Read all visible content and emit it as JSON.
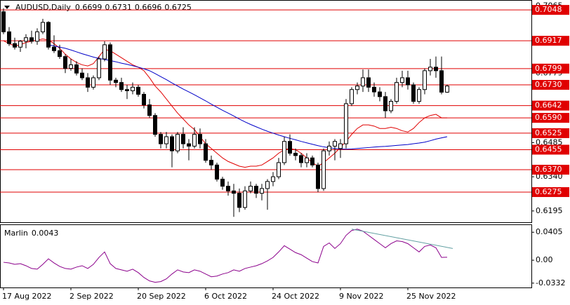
{
  "chart_data": [
    {
      "type": "candlestick",
      "title": "AUDUSD,Daily",
      "categories": [
        "17 Aug 2022",
        null,
        null,
        null,
        null,
        null,
        null,
        null,
        null,
        null,
        null,
        null,
        "2 Sep 2022",
        null,
        null,
        null,
        null,
        null,
        null,
        null,
        null,
        null,
        null,
        null,
        "20 Sep 2022",
        null,
        null,
        null,
        null,
        null,
        null,
        null,
        null,
        null,
        null,
        null,
        "6 Oct 2022",
        null,
        null,
        null,
        null,
        null,
        null,
        null,
        null,
        null,
        null,
        null,
        "24 Oct 2022",
        null,
        null,
        null,
        null,
        null,
        null,
        null,
        null,
        null,
        null,
        null,
        "9 Nov 2022",
        null,
        null,
        null,
        null,
        null,
        null,
        null,
        null,
        null,
        null,
        null,
        "25 Nov 2022",
        null,
        null,
        null,
        null,
        null,
        null,
        null
      ],
      "open": [
        0.704,
        0.6955,
        0.6905,
        0.689,
        0.6915,
        0.693,
        0.6915,
        0.6955,
        0.6995,
        0.689,
        0.6875,
        0.685,
        0.68,
        0.6815,
        0.678,
        0.676,
        0.672,
        0.676,
        0.684,
        0.69,
        0.675,
        0.674,
        0.671,
        0.6705,
        0.672,
        0.669,
        0.6645,
        0.66,
        0.652,
        0.648,
        0.651,
        0.645,
        0.652,
        0.648,
        0.647,
        0.652,
        0.648,
        0.641,
        0.639,
        0.633,
        0.63,
        0.628,
        0.627,
        0.621,
        0.628,
        0.63,
        0.627,
        0.629,
        0.632,
        0.634,
        0.64,
        0.649,
        0.644,
        0.643,
        0.64,
        0.642,
        0.639,
        0.629,
        0.645,
        0.647,
        0.646,
        0.648,
        0.665,
        0.671,
        0.6725,
        0.676,
        0.672,
        0.67,
        0.668,
        0.662,
        0.666,
        0.674,
        0.676,
        0.673,
        0.666,
        0.671,
        0.679,
        0.6805,
        0.679,
        0.6699
      ],
      "high": [
        0.7055,
        0.6975,
        0.693,
        0.692,
        0.6945,
        0.696,
        0.697,
        0.701,
        0.7,
        0.694,
        0.69,
        0.686,
        0.684,
        0.683,
        0.68,
        0.678,
        0.677,
        0.685,
        0.6915,
        0.691,
        0.676,
        0.676,
        0.673,
        0.674,
        0.673,
        0.67,
        0.667,
        0.661,
        0.653,
        0.653,
        0.652,
        0.653,
        0.655,
        0.65,
        0.655,
        0.6545,
        0.65,
        0.643,
        0.64,
        0.634,
        0.632,
        0.631,
        0.629,
        0.63,
        0.632,
        0.631,
        0.631,
        0.633,
        0.636,
        0.642,
        0.651,
        0.652,
        0.646,
        0.644,
        0.644,
        0.643,
        0.64,
        0.646,
        0.649,
        0.65,
        0.65,
        0.667,
        0.672,
        0.674,
        0.6795,
        0.6795,
        0.674,
        0.672,
        0.67,
        0.667,
        0.676,
        0.679,
        0.679,
        0.674,
        0.672,
        0.68,
        0.684,
        0.685,
        0.685,
        0.6731
      ],
      "low": [
        0.6945,
        0.6895,
        0.688,
        0.687,
        0.6885,
        0.6905,
        0.69,
        0.6945,
        0.688,
        0.6865,
        0.684,
        0.678,
        0.679,
        0.677,
        0.675,
        0.67,
        0.671,
        0.675,
        0.683,
        0.673,
        0.672,
        0.67,
        0.667,
        0.669,
        0.668,
        0.663,
        0.659,
        0.651,
        0.646,
        0.646,
        0.638,
        0.644,
        0.646,
        0.641,
        0.646,
        0.646,
        0.64,
        0.637,
        0.632,
        0.6285,
        0.626,
        0.617,
        0.619,
        0.62,
        0.627,
        0.625,
        0.624,
        0.62,
        0.63,
        0.633,
        0.639,
        0.643,
        0.641,
        0.638,
        0.638,
        0.638,
        0.6275,
        0.628,
        0.643,
        0.641,
        0.642,
        0.646,
        0.664,
        0.669,
        0.67,
        0.67,
        0.668,
        0.666,
        0.659,
        0.661,
        0.665,
        0.672,
        0.671,
        0.665,
        0.665,
        0.669,
        0.677,
        0.676,
        0.669,
        0.6696
      ],
      "close": [
        0.6955,
        0.6905,
        0.689,
        0.6915,
        0.693,
        0.6915,
        0.6955,
        0.6995,
        0.689,
        0.6875,
        0.685,
        0.68,
        0.6815,
        0.678,
        0.676,
        0.672,
        0.676,
        0.684,
        0.69,
        0.675,
        0.674,
        0.671,
        0.6705,
        0.672,
        0.669,
        0.6645,
        0.66,
        0.652,
        0.648,
        0.651,
        0.645,
        0.652,
        0.648,
        0.647,
        0.652,
        0.648,
        0.641,
        0.639,
        0.633,
        0.63,
        0.628,
        0.627,
        0.621,
        0.628,
        0.63,
        0.627,
        0.629,
        0.632,
        0.634,
        0.64,
        0.649,
        0.644,
        0.643,
        0.64,
        0.642,
        0.639,
        0.629,
        0.645,
        0.647,
        0.649,
        0.648,
        0.665,
        0.671,
        0.6725,
        0.676,
        0.672,
        0.67,
        0.668,
        0.662,
        0.666,
        0.674,
        0.676,
        0.673,
        0.666,
        0.671,
        0.679,
        0.6805,
        0.679,
        0.6699,
        0.6725
      ],
      "lines": [
        {
          "color": "#e00000",
          "values": [
            0.6917,
            0.6905,
            0.6895,
            0.69,
            0.691,
            0.6915,
            0.692,
            0.6925,
            0.692,
            0.6905,
            0.6885,
            0.686,
            0.684,
            0.6825,
            0.6815,
            0.681,
            0.682,
            0.685,
            0.688,
            0.6875,
            0.686,
            0.6845,
            0.683,
            0.6815,
            0.6805,
            0.679,
            0.676,
            0.6725,
            0.67,
            0.667,
            0.664,
            0.661,
            0.6585,
            0.656,
            0.654,
            0.651,
            0.648,
            0.646,
            0.644,
            0.642,
            0.6405,
            0.6395,
            0.6385,
            0.638,
            0.6385,
            0.6385,
            0.639,
            0.6405,
            0.642,
            0.644,
            0.6455,
            0.646,
            0.6455,
            0.644,
            0.642,
            0.64,
            0.6385,
            0.64,
            0.642,
            0.644,
            0.6465,
            0.649,
            0.652,
            0.6545,
            0.656,
            0.656,
            0.6555,
            0.6545,
            0.6545,
            0.655,
            0.6545,
            0.6535,
            0.653,
            0.6545,
            0.657,
            0.659,
            0.66,
            0.6605,
            0.659,
            0.659
          ]
        },
        {
          "color": "#0000c8",
          "values": [
            null,
            null,
            null,
            null,
            null,
            null,
            null,
            null,
            0.69,
            0.6895,
            0.689,
            0.6885,
            0.6878,
            0.687,
            0.6862,
            0.6855,
            0.6848,
            0.6842,
            0.6838,
            0.6833,
            0.6828,
            0.6822,
            0.6817,
            0.6811,
            0.6805,
            0.6798,
            0.679,
            0.6778,
            0.6765,
            0.6752,
            0.6738,
            0.6725,
            0.6712,
            0.67,
            0.6688,
            0.6675,
            0.6662,
            0.6648,
            0.6635,
            0.6622,
            0.661,
            0.6598,
            0.6585,
            0.6573,
            0.6562,
            0.6552,
            0.6542,
            0.6533,
            0.6525,
            0.6517,
            0.651,
            0.6503,
            0.6497,
            0.649,
            0.6484,
            0.6478,
            0.6472,
            0.6467,
            0.6463,
            0.646,
            0.6458,
            0.6457,
            0.6458,
            0.646,
            0.6462,
            0.6464,
            0.6466,
            0.6468,
            0.6469,
            0.6471,
            0.6473,
            0.6475,
            0.6477,
            0.648,
            0.6483,
            0.6487,
            0.6493,
            0.65,
            0.6505,
            0.651
          ]
        }
      ],
      "levels": [
        {
          "value": 0.7048,
          "label": "0.7048"
        },
        {
          "value": 0.6917,
          "label": "0.6917"
        },
        {
          "value": 0.6799,
          "label": "0.6799"
        },
        {
          "value": 0.673,
          "label": "0.6730"
        },
        {
          "value": 0.6642,
          "label": "0.6642"
        },
        {
          "value": 0.659,
          "label": "0.6590"
        },
        {
          "value": 0.6525,
          "label": "0.6525"
        },
        {
          "value": 0.6455,
          "label": "0.6455"
        },
        {
          "value": 0.637,
          "label": "0.6370"
        },
        {
          "value": 0.6275,
          "label": "0.6275"
        }
      ],
      "level_color": "#e00000",
      "ylim": [
        0.6147,
        0.709
      ],
      "yticks": [
        0.7065,
        0.6779,
        0.6485,
        {
          "value": 0.634,
          "label": "0.6340"
        },
        0.6195
      ]
    },
    {
      "type": "line",
      "title": "Marlin",
      "color": "#8b008b",
      "values": [
        -0.003,
        -0.004,
        -0.006,
        -0.005,
        -0.008,
        -0.012,
        -0.013,
        -0.006,
        0.002,
        -0.004,
        -0.009,
        -0.012,
        -0.013,
        -0.01,
        -0.008,
        -0.012,
        -0.006,
        0.004,
        0.012,
        -0.005,
        -0.012,
        -0.014,
        -0.016,
        -0.013,
        -0.018,
        -0.025,
        -0.03,
        -0.032,
        -0.031,
        -0.027,
        -0.02,
        -0.014,
        -0.017,
        -0.018,
        -0.014,
        -0.016,
        -0.02,
        -0.024,
        -0.023,
        -0.02,
        -0.018,
        -0.014,
        -0.016,
        -0.012,
        -0.01,
        -0.008,
        -0.005,
        -0.001,
        0.004,
        0.012,
        0.021,
        0.016,
        0.011,
        0.008,
        0.003,
        -0.002,
        -0.004,
        0.02,
        0.025,
        0.017,
        0.024,
        0.036,
        0.043,
        0.045,
        0.042,
        0.036,
        0.03,
        0.024,
        0.018,
        0.024,
        0.028,
        0.027,
        0.024,
        0.018,
        0.012,
        0.02,
        0.022,
        0.018,
        0.004,
        0.0043
      ],
      "trendline": {
        "x": [
          62,
          80
        ],
        "values": [
          0.045,
          0.017
        ],
        "color": "#5f9ea0"
      },
      "ylim": [
        -0.0395,
        0.0519
      ],
      "yticks": [
        0.0405,
        {
          "value": 0,
          "label": "0.00"
        },
        -0.0332
      ]
    }
  ]
}
